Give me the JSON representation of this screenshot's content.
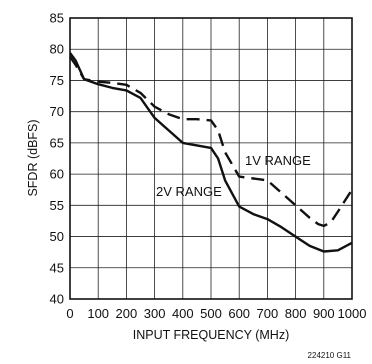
{
  "chart_data": {
    "type": "line",
    "title": "",
    "xlabel": "INPUT FREQUENCY (MHz)",
    "ylabel": "SFDR (dBFS)",
    "xlim": [
      0,
      1000
    ],
    "ylim": [
      40,
      85
    ],
    "x_ticks": [
      "0",
      "100",
      "200",
      "300",
      "400",
      "500",
      "600",
      "700",
      "800",
      "900",
      "1000"
    ],
    "y_ticks": [
      "40",
      "45",
      "50",
      "55",
      "60",
      "65",
      "70",
      "75",
      "80",
      "85"
    ],
    "grid": true,
    "figure_id": "224210 G11",
    "series": [
      {
        "name": "1V RANGE",
        "style": "dashed",
        "x": [
          0,
          20,
          50,
          100,
          150,
          200,
          250,
          300,
          350,
          400,
          450,
          500,
          525,
          550,
          600,
          650,
          700,
          750,
          800,
          850,
          880,
          900,
          925,
          950,
          1000
        ],
        "y": [
          78.8,
          77.5,
          75.2,
          74.8,
          74.6,
          74.3,
          73.0,
          70.8,
          69.6,
          68.8,
          68.8,
          68.6,
          67.0,
          63.5,
          59.6,
          59.3,
          59.0,
          57.0,
          55.0,
          53.0,
          52.0,
          51.7,
          52.3,
          54.0,
          57.5
        ]
      },
      {
        "name": "2V RANGE",
        "style": "solid",
        "x": [
          0,
          20,
          50,
          100,
          150,
          200,
          250,
          300,
          350,
          400,
          450,
          500,
          525,
          550,
          600,
          650,
          700,
          750,
          800,
          850,
          900,
          950,
          1000
        ],
        "y": [
          79.4,
          78.2,
          75.2,
          74.4,
          73.8,
          73.4,
          72.2,
          69.0,
          67.0,
          65.0,
          64.6,
          64.2,
          62.5,
          59.0,
          54.8,
          53.6,
          52.8,
          51.5,
          50.0,
          48.5,
          47.6,
          47.8,
          49.0
        ]
      }
    ]
  }
}
